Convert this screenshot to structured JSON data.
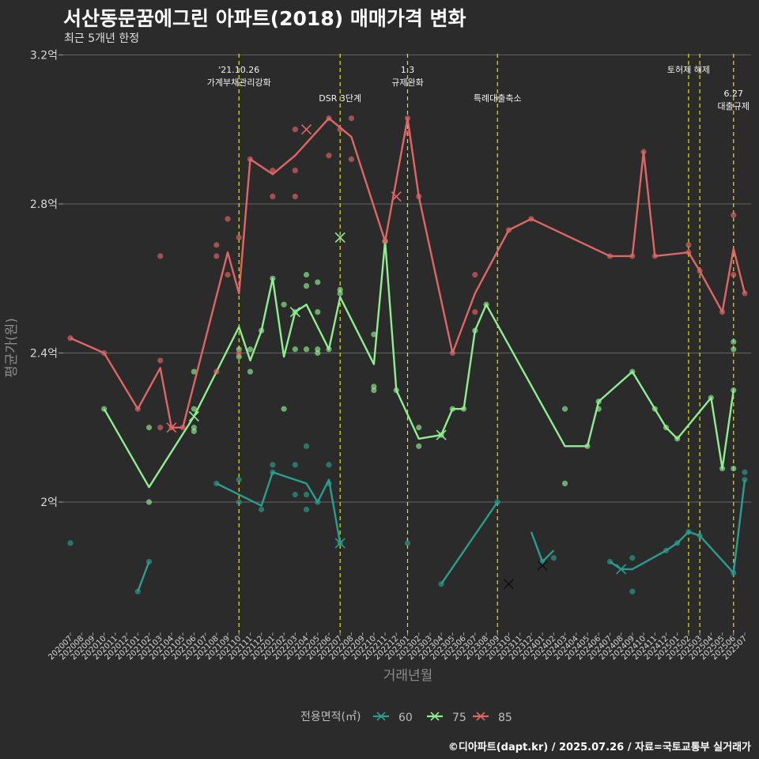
{
  "title": "서산동문꿈에그린 아파트(2018) 매매가격 변화",
  "subtitle": "최근 5개년 한정",
  "caption": "©디아파트(dapt.kr) / 2025.07.26 / 자료=국토교통부 실거래가",
  "chart_data": {
    "type": "line",
    "xlabel": "거래년월",
    "ylabel": "평균가(원)",
    "ylim": [
      1.65,
      3.22
    ],
    "y_ticks": [
      {
        "value": 2.0,
        "label": "2억"
      },
      {
        "value": 2.4,
        "label": "2.4억"
      },
      {
        "value": 2.8,
        "label": "2.8억"
      },
      {
        "value": 3.2,
        "label": "3.2억"
      }
    ],
    "x": [
      "202007",
      "202008",
      "202009",
      "202010",
      "202011",
      "202012",
      "202101",
      "202102",
      "202103",
      "202104",
      "202105",
      "202106",
      "202107",
      "202108",
      "202109",
      "202110",
      "202111",
      "202112",
      "202201",
      "202202",
      "202203",
      "202204",
      "202205",
      "202206",
      "202207",
      "202208",
      "202209",
      "202210",
      "202211",
      "202212",
      "202301",
      "202302",
      "202303",
      "202304",
      "202305",
      "202306",
      "202307",
      "202308",
      "202309",
      "202310",
      "202311",
      "202312",
      "202401",
      "202402",
      "202403",
      "202404",
      "202405",
      "202406",
      "202407",
      "202408",
      "202409",
      "202410",
      "202411",
      "202412",
      "202501",
      "202502",
      "202503",
      "202504",
      "202505",
      "202506",
      "202507"
    ],
    "grid": true,
    "legend": {
      "title": "전용면적(㎡)",
      "position": "bottom"
    },
    "events": [
      {
        "x": "202110",
        "lines": [
          "'21.10.26",
          "가계부채관리강화"
        ],
        "row": 0
      },
      {
        "x": "202207",
        "lines": [
          "DSR 3단계"
        ],
        "row": 1
      },
      {
        "x": "202301",
        "lines": [
          "1.3",
          "규제완화"
        ],
        "row": 0
      },
      {
        "x": "202309",
        "lines": [
          "특례대출축소"
        ],
        "row": 1
      },
      {
        "x": "202502",
        "lines": [
          "토허제 해제"
        ],
        "row": 0
      },
      {
        "x": "202503",
        "lines": [],
        "row": 0
      },
      {
        "x": "202506",
        "lines": [
          "6.27",
          "대출규제"
        ],
        "row": 2
      }
    ],
    "series": [
      {
        "name": "60",
        "color": "#2a9d8f",
        "line": [
          [
            "202101",
            1.76
          ],
          [
            "202102",
            1.84
          ],
          null,
          [
            "202108",
            2.05
          ],
          [
            "202110",
            2.02
          ],
          [
            "202112",
            1.99
          ],
          [
            "202201",
            2.08
          ],
          [
            "202204",
            2.05
          ],
          [
            "202205",
            2.0
          ],
          [
            "202206",
            2.06
          ],
          [
            "202207",
            1.89
          ],
          null,
          [
            "202304",
            1.78
          ],
          [
            "202309",
            2.0
          ],
          null,
          [
            "202312",
            1.92
          ],
          [
            "202401",
            1.84
          ],
          [
            "202402",
            1.87
          ],
          null,
          [
            "202407",
            1.84
          ],
          [
            "202408",
            1.82
          ],
          [
            "202409",
            1.82
          ],
          [
            "202412",
            1.87
          ],
          [
            "202501",
            1.89
          ],
          [
            "202502",
            1.92
          ],
          [
            "202503",
            1.91
          ],
          [
            "202506",
            1.81
          ],
          [
            "202507",
            2.06
          ]
        ],
        "points": [
          [
            "202007",
            1.89
          ],
          [
            "202101",
            1.76
          ],
          [
            "202102",
            1.84
          ],
          [
            "202108",
            2.05
          ],
          [
            "202110",
            2.06
          ],
          [
            "202110",
            2.0
          ],
          [
            "202112",
            1.98
          ],
          [
            "202201",
            2.1
          ],
          [
            "202201",
            2.08
          ],
          [
            "202203",
            2.02
          ],
          [
            "202203",
            2.1
          ],
          [
            "202204",
            2.02
          ],
          [
            "202204",
            1.98
          ],
          [
            "202204",
            2.15
          ],
          [
            "202205",
            2.0
          ],
          [
            "202206",
            2.1
          ],
          [
            "202206",
            2.05
          ],
          [
            "202207",
            1.89
          ],
          [
            "202301",
            1.89
          ],
          [
            "202304",
            1.78
          ],
          [
            "202309",
            2.0
          ],
          [
            "202401",
            1.84
          ],
          [
            "202402",
            1.85
          ],
          [
            "202407",
            1.84
          ],
          [
            "202409",
            1.85
          ],
          [
            "202409",
            1.76
          ],
          [
            "202412",
            1.87
          ],
          [
            "202501",
            1.89
          ],
          [
            "202502",
            1.92
          ],
          [
            "202503",
            1.91
          ],
          [
            "202506",
            1.81
          ],
          [
            "202507",
            2.06
          ],
          [
            "202507",
            2.08
          ]
        ],
        "crosses": [
          [
            "202207",
            1.89
          ],
          [
            "202310",
            1.78
          ],
          [
            "202401",
            1.83
          ],
          [
            "202408",
            1.82
          ]
        ]
      },
      {
        "name": "75",
        "color": "#90ee90",
        "line": [
          [
            "202010",
            2.25
          ],
          [
            "202102",
            2.04
          ],
          [
            "202106",
            2.23
          ],
          [
            "202110",
            2.47
          ],
          [
            "202111",
            2.38
          ],
          [
            "202112",
            2.46
          ],
          [
            "202201",
            2.6
          ],
          [
            "202202",
            2.39
          ],
          [
            "202203",
            2.51
          ],
          [
            "202204",
            2.53
          ],
          [
            "202205",
            2.47
          ],
          [
            "202206",
            2.41
          ],
          [
            "202207",
            2.55
          ],
          [
            "202210",
            2.37
          ],
          [
            "202211",
            2.7
          ],
          [
            "202212",
            2.3
          ],
          [
            "202302",
            2.17
          ],
          [
            "202304",
            2.18
          ],
          [
            "202305",
            2.25
          ],
          [
            "202306",
            2.25
          ],
          [
            "202307",
            2.46
          ],
          [
            "202308",
            2.53
          ],
          [
            "202403",
            2.15
          ],
          [
            "202405",
            2.15
          ],
          [
            "202406",
            2.27
          ],
          [
            "202409",
            2.35
          ],
          [
            "202411",
            2.25
          ],
          [
            "202412",
            2.2
          ],
          [
            "202501",
            2.17
          ],
          [
            "202504",
            2.28
          ],
          [
            "202505",
            2.09
          ],
          [
            "202506",
            2.3
          ]
        ],
        "points": [
          [
            "202010",
            2.25
          ],
          [
            "202102",
            2.2
          ],
          [
            "202102",
            2.0
          ],
          [
            "202106",
            2.35
          ],
          [
            "202106",
            2.25
          ],
          [
            "202106",
            2.19
          ],
          [
            "202106",
            2.2
          ],
          [
            "202110",
            2.39
          ],
          [
            "202110",
            2.41
          ],
          [
            "202111",
            2.35
          ],
          [
            "202111",
            2.41
          ],
          [
            "202112",
            2.46
          ],
          [
            "202201",
            2.6
          ],
          [
            "202202",
            2.25
          ],
          [
            "202202",
            2.53
          ],
          [
            "202203",
            2.41
          ],
          [
            "202203",
            2.51
          ],
          [
            "202204",
            2.58
          ],
          [
            "202204",
            2.61
          ],
          [
            "202204",
            2.41
          ],
          [
            "202205",
            2.51
          ],
          [
            "202205",
            2.4
          ],
          [
            "202205",
            2.41
          ],
          [
            "202205",
            2.59
          ],
          [
            "202206",
            2.41
          ],
          [
            "202207",
            2.57
          ],
          [
            "202207",
            2.56
          ],
          [
            "202210",
            2.45
          ],
          [
            "202210",
            2.31
          ],
          [
            "202210",
            2.3
          ],
          [
            "202211",
            2.7
          ],
          [
            "202212",
            2.3
          ],
          [
            "202302",
            2.2
          ],
          [
            "202302",
            2.15
          ],
          [
            "202304",
            2.18
          ],
          [
            "202305",
            2.25
          ],
          [
            "202306",
            2.25
          ],
          [
            "202307",
            2.46
          ],
          [
            "202308",
            2.53
          ],
          [
            "202403",
            2.25
          ],
          [
            "202403",
            2.05
          ],
          [
            "202405",
            2.15
          ],
          [
            "202406",
            2.27
          ],
          [
            "202406",
            2.25
          ],
          [
            "202409",
            2.35
          ],
          [
            "202411",
            2.25
          ],
          [
            "202412",
            2.2
          ],
          [
            "202501",
            2.17
          ],
          [
            "202504",
            2.28
          ],
          [
            "202505",
            2.09
          ],
          [
            "202506",
            2.43
          ],
          [
            "202506",
            2.41
          ],
          [
            "202506",
            2.3
          ],
          [
            "202506",
            2.09
          ]
        ],
        "crosses": [
          [
            "202106",
            2.23
          ],
          [
            "202203",
            2.51
          ],
          [
            "202207",
            2.71
          ],
          [
            "202304",
            2.18
          ]
        ]
      },
      {
        "name": "85",
        "color": "#e06666",
        "line": [
          [
            "202007",
            2.44
          ],
          [
            "202010",
            2.4
          ],
          [
            "202101",
            2.25
          ],
          [
            "202103",
            2.36
          ],
          [
            "202104",
            2.2
          ],
          [
            "202105",
            2.2
          ],
          [
            "202109",
            2.67
          ],
          [
            "202110",
            2.56
          ],
          [
            "202111",
            2.92
          ],
          [
            "202201",
            2.88
          ],
          [
            "202203",
            2.93
          ],
          [
            "202206",
            3.03
          ],
          [
            "202208",
            2.98
          ],
          [
            "202211",
            2.7
          ],
          [
            "202301",
            3.03
          ],
          [
            "202302",
            2.82
          ],
          [
            "202305",
            2.4
          ],
          [
            "202307",
            2.56
          ],
          [
            "202310",
            2.73
          ],
          [
            "202312",
            2.76
          ],
          [
            "202407",
            2.66
          ],
          [
            "202409",
            2.66
          ],
          [
            "202410",
            2.94
          ],
          [
            "202411",
            2.66
          ],
          [
            "202502",
            2.67
          ],
          [
            "202503",
            2.62
          ],
          [
            "202505",
            2.51
          ],
          [
            "202506",
            2.68
          ],
          [
            "202507",
            2.56
          ]
        ],
        "points": [
          [
            "202007",
            2.44
          ],
          [
            "202010",
            2.4
          ],
          [
            "202101",
            2.25
          ],
          [
            "202103",
            2.66
          ],
          [
            "202103",
            2.38
          ],
          [
            "202103",
            2.2
          ],
          [
            "202104",
            2.2
          ],
          [
            "202105",
            2.2
          ],
          [
            "202108",
            2.69
          ],
          [
            "202108",
            2.66
          ],
          [
            "202108",
            2.35
          ],
          [
            "202109",
            2.76
          ],
          [
            "202109",
            2.61
          ],
          [
            "202110",
            2.71
          ],
          [
            "202110",
            2.4
          ],
          [
            "202111",
            2.92
          ],
          [
            "202201",
            2.89
          ],
          [
            "202201",
            2.82
          ],
          [
            "202203",
            3.0
          ],
          [
            "202203",
            2.89
          ],
          [
            "202203",
            2.82
          ],
          [
            "202206",
            2.93
          ],
          [
            "202206",
            3.03
          ],
          [
            "202207",
            3.0
          ],
          [
            "202208",
            3.03
          ],
          [
            "202208",
            2.92
          ],
          [
            "202211",
            2.7
          ],
          [
            "202301",
            3.03
          ],
          [
            "202301",
            2.99
          ],
          [
            "202302",
            2.82
          ],
          [
            "202305",
            2.4
          ],
          [
            "202307",
            2.51
          ],
          [
            "202307",
            2.61
          ],
          [
            "202310",
            2.73
          ],
          [
            "202312",
            2.76
          ],
          [
            "202407",
            2.66
          ],
          [
            "202409",
            2.66
          ],
          [
            "202410",
            2.94
          ],
          [
            "202411",
            2.66
          ],
          [
            "202502",
            2.67
          ],
          [
            "202502",
            2.69
          ],
          [
            "202503",
            2.62
          ],
          [
            "202505",
            2.51
          ],
          [
            "202506",
            2.77
          ],
          [
            "202506",
            2.61
          ],
          [
            "202507",
            2.56
          ]
        ],
        "crosses": [
          [
            "202104",
            2.2
          ],
          [
            "202204",
            3.0
          ],
          [
            "202212",
            2.82
          ]
        ]
      }
    ]
  }
}
